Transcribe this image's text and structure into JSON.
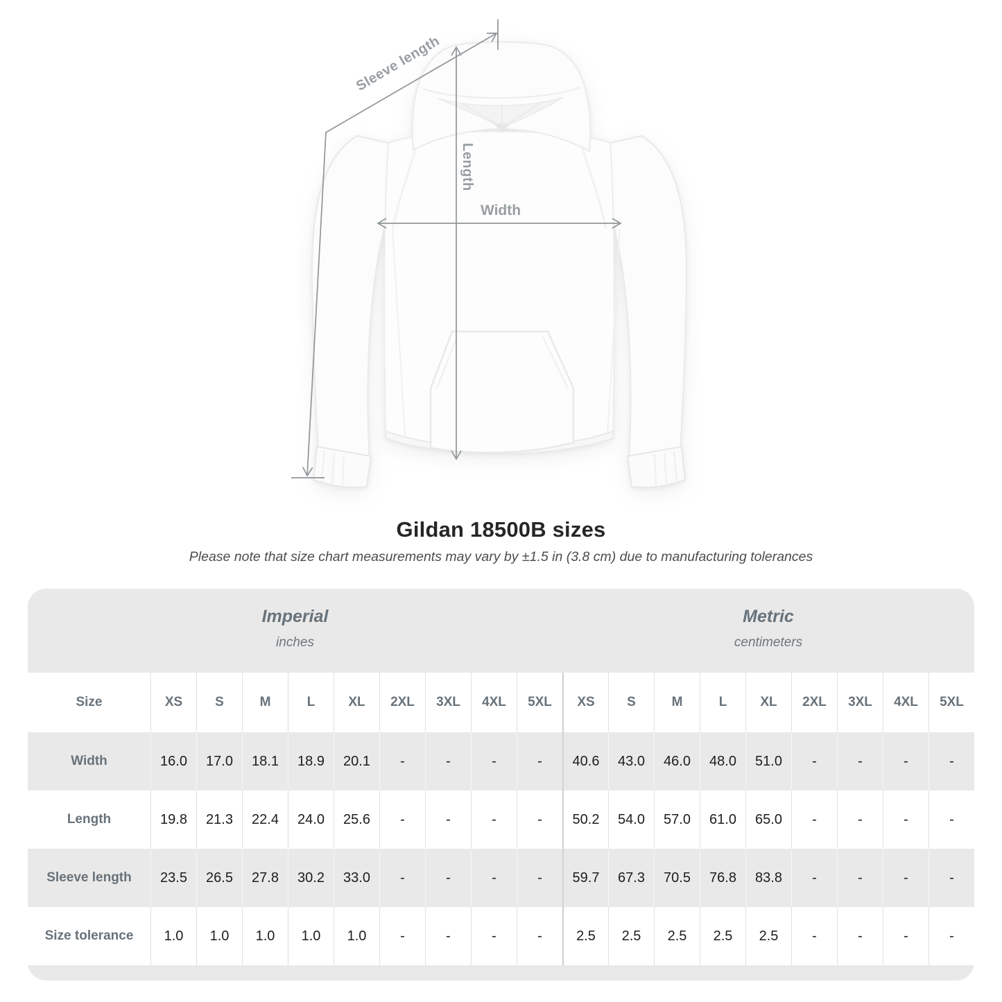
{
  "page": {
    "title": "Gildan 18500B sizes",
    "subtitle": "Please note that size chart measurements may vary by ±1.5 in (3.8 cm) due to manufacturing tolerances"
  },
  "diagram": {
    "labels": {
      "sleeve_length": "Sleeve length",
      "length": "Length",
      "width": "Width"
    }
  },
  "size_table": {
    "size_header": "Size",
    "groups": [
      {
        "name": "Imperial",
        "unit": "inches"
      },
      {
        "name": "Metric",
        "unit": "centimeters"
      }
    ],
    "columns": [
      "XS",
      "S",
      "M",
      "L",
      "XL",
      "2XL",
      "3XL",
      "4XL",
      "5XL",
      "XS",
      "S",
      "M",
      "L",
      "XL",
      "2XL",
      "3XL",
      "4XL",
      "5XL"
    ],
    "rows": [
      {
        "label": "Width",
        "values": [
          "16.0",
          "17.0",
          "18.1",
          "18.9",
          "20.1",
          "-",
          "-",
          "-",
          "-",
          "40.6",
          "43.0",
          "46.0",
          "48.0",
          "51.0",
          "-",
          "-",
          "-",
          "-"
        ]
      },
      {
        "label": "Length",
        "values": [
          "19.8",
          "21.3",
          "22.4",
          "24.0",
          "25.6",
          "-",
          "-",
          "-",
          "-",
          "50.2",
          "54.0",
          "57.0",
          "61.0",
          "65.0",
          "-",
          "-",
          "-",
          "-"
        ]
      },
      {
        "label": "Sleeve length",
        "values": [
          "23.5",
          "26.5",
          "27.8",
          "30.2",
          "33.0",
          "-",
          "-",
          "-",
          "-",
          "59.7",
          "67.3",
          "70.5",
          "76.8",
          "83.8",
          "-",
          "-",
          "-",
          "-"
        ]
      },
      {
        "label": "Size tolerance",
        "values": [
          "1.0",
          "1.0",
          "1.0",
          "1.0",
          "1.0",
          "-",
          "-",
          "-",
          "-",
          "2.5",
          "2.5",
          "2.5",
          "2.5",
          "2.5",
          "-",
          "-",
          "-",
          "-"
        ]
      }
    ]
  },
  "colors": {
    "arrow_gray": "#8f9598",
    "measure_label_gray": "#989ea2",
    "table_band_gray": "#e9e9e9",
    "table_text_gray": "#68727a",
    "value_text": "#1d1d1d"
  }
}
